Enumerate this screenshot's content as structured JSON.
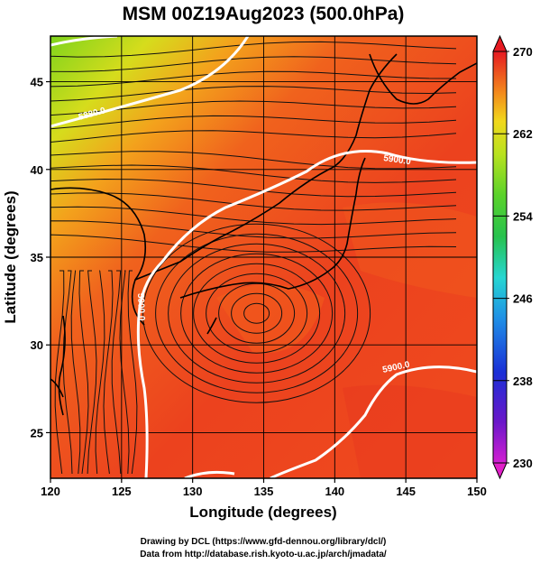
{
  "title": "MSM 00Z19Aug2023 (500.0hPa)",
  "x_axis": {
    "label": "Longitude (degrees)",
    "ticks": [
      "120",
      "125",
      "130",
      "135",
      "140",
      "145",
      "150"
    ],
    "range": [
      120,
      150
    ]
  },
  "y_axis": {
    "label": "Latitude  (degrees)",
    "ticks": [
      "25",
      "30",
      "35",
      "40",
      "45"
    ],
    "range": [
      22.4,
      47.6
    ]
  },
  "colorbar": {
    "ticks": [
      "230",
      "238",
      "246",
      "254",
      "262",
      "270"
    ],
    "range": [
      230,
      270
    ],
    "colors": [
      "#d21fd2",
      "#6a17c9",
      "#1a2fd6",
      "#1f8fe6",
      "#26d6d2",
      "#27c24e",
      "#5ad22a",
      "#b8e21f",
      "#f1d81c",
      "#f38a1c",
      "#ea3d1f",
      "#e61a22"
    ]
  },
  "contours": [
    {
      "label": "5880.0"
    },
    {
      "label": "5880.0"
    },
    {
      "label": "5900.0"
    },
    {
      "label": "5900.0"
    },
    {
      "label": "5900.0"
    }
  ],
  "credits": {
    "line1": "Drawing by DCL (https://www.gfd-dennou.org/library/dcl/)",
    "line2": "Data from http://database.rish.kyoto-u.ac.jp/arch/jmadata/"
  },
  "colors": {
    "field_low": "#e8321e",
    "field_mid": "#f35a1c",
    "field_cool": "#a8d81c",
    "field_yellow": "#f3c21c",
    "contour": "#ffffff",
    "coast": "#000000"
  }
}
